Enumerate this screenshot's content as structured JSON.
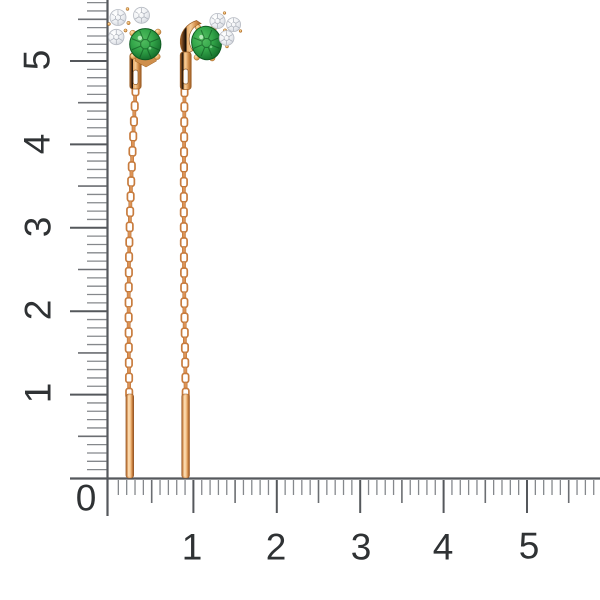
{
  "scene": {
    "background_color": "#ffffff",
    "items": [
      {
        "name": "left-threader-earring",
        "parts": [
          "diamond-cluster",
          "green-gem",
          "cable-chain",
          "threader-bar"
        ]
      },
      {
        "name": "right-threader-earring",
        "parts": [
          "diamond-cluster",
          "green-gem",
          "cable-chain",
          "threader-bar"
        ]
      }
    ]
  },
  "rulers": {
    "unit_implied": "cm",
    "horizontal": {
      "labels": [
        "0",
        "1",
        "2",
        "3",
        "4",
        "5"
      ]
    },
    "vertical": {
      "labels": [
        "1",
        "2",
        "3",
        "4",
        "5"
      ]
    }
  },
  "colors": {
    "ruler_line": "#55585c",
    "ruler_tick_medium": "#6b6e72",
    "ruler_tick_minor": "#85888c",
    "ruler_label": "#2f3234",
    "gold_light": "#f9d3a4",
    "gold_mid": "#dd9355",
    "gold_dark": "#a5622c",
    "gem_green_light": "#55bf62",
    "gem_green": "#2f9e44",
    "gem_green_dark": "#0f5c22",
    "diamond_white": "#eff1f4",
    "diamond_facet": "#a9aeb8"
  }
}
